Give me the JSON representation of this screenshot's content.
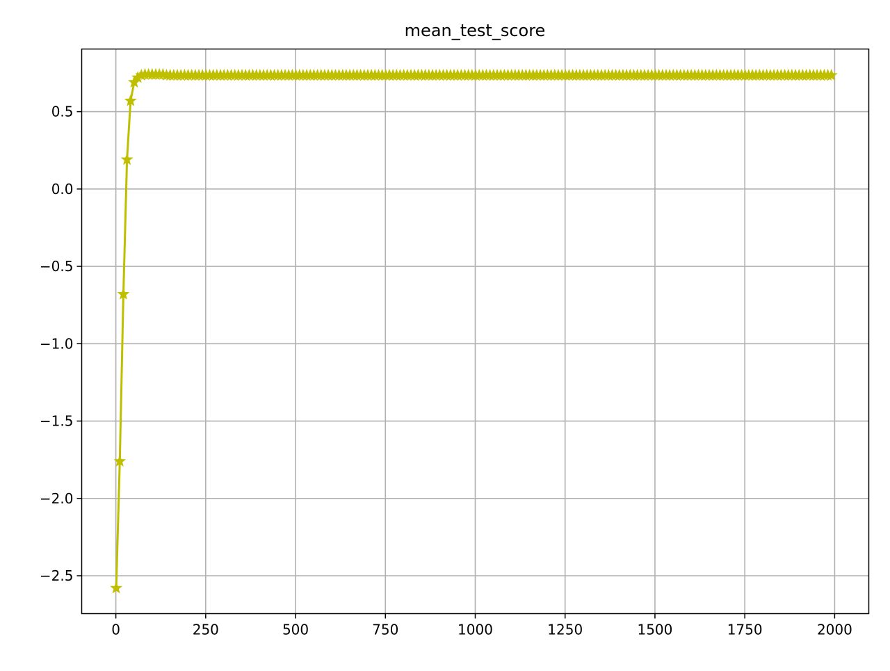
{
  "chart_data": {
    "type": "line",
    "title": "mean_test_score",
    "xlabel": "",
    "ylabel": "",
    "xlim": [
      -95,
      2095
    ],
    "ylim": [
      -2.745,
      0.905
    ],
    "xticks": [
      0,
      250,
      500,
      750,
      1000,
      1250,
      1500,
      1750,
      2000
    ],
    "xtick_labels": [
      "0",
      "250",
      "500",
      "750",
      "1000",
      "1250",
      "1500",
      "1750",
      "2000"
    ],
    "yticks": [
      0.5,
      0.0,
      -0.5,
      -1.0,
      -1.5,
      -2.0,
      -2.5
    ],
    "ytick_labels": [
      "0.5",
      "0.0",
      "−0.5",
      "−1.0",
      "−1.5",
      "−2.0",
      "−2.5"
    ],
    "grid": true,
    "series": [
      {
        "color": "#bfbf00",
        "marker": "star",
        "x_start": 1,
        "x_step": 10,
        "x_end": 1991,
        "initial_values": [
          -2.58,
          -1.76,
          -0.68,
          0.19,
          0.57,
          0.69,
          0.72,
          0.735,
          0.74,
          0.74,
          0.74,
          0.74,
          0.74,
          0.74
        ],
        "plateau_value": 0.735
      }
    ]
  }
}
